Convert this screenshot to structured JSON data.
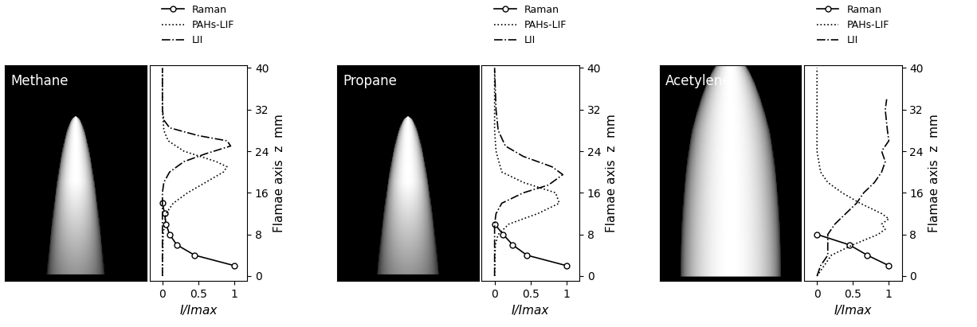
{
  "chart_data": [
    {
      "type": "line",
      "title": "Methane",
      "xlabel": "I/Imax",
      "ylabel": "Flamae axis  z  mm",
      "xlim": [
        -0.18,
        1.18
      ],
      "xticks": [
        0,
        0.5,
        1
      ],
      "ylim": [
        -1,
        40.5
      ],
      "yticks": [
        0,
        8,
        16,
        24,
        32,
        40
      ],
      "legend": "upper center",
      "series": [
        {
          "name": "Raman",
          "color": "#000000",
          "marker": "o",
          "line_style": "solid",
          "x": [
            1.0,
            0.45,
            0.2,
            0.1,
            0.05,
            0.03,
            0.0
          ],
          "y": [
            2,
            4,
            6,
            8,
            10,
            12,
            14
          ]
        },
        {
          "name": "PAHs-LIF",
          "color": "#000000",
          "marker": "none",
          "line_style": "dotted",
          "x": [
            0,
            0.01,
            0.05,
            0.15,
            0.35,
            0.6,
            0.85,
            0.9,
            0.75,
            0.3,
            0.08,
            0.02,
            0,
            0
          ],
          "y": [
            0,
            8,
            12,
            14,
            16,
            18,
            20,
            21,
            22,
            24,
            26,
            28,
            32,
            40
          ]
        },
        {
          "name": "LII",
          "color": "#000000",
          "marker": "none",
          "line_style": "dashdot",
          "x": [
            0,
            0,
            0.02,
            0.1,
            0.3,
            0.6,
            0.95,
            0.9,
            0.5,
            0.1,
            0.02,
            0,
            0
          ],
          "y": [
            0,
            16,
            18,
            20,
            22,
            23.5,
            25,
            26,
            27,
            28.5,
            30,
            32,
            40
          ]
        }
      ]
    },
    {
      "type": "line",
      "title": "Propane",
      "xlabel": "I/Imax",
      "ylabel": "Flamae axis  z  mm",
      "xlim": [
        -0.18,
        1.18
      ],
      "xticks": [
        0,
        0.5,
        1
      ],
      "ylim": [
        -1,
        40.5
      ],
      "yticks": [
        0,
        8,
        16,
        24,
        32,
        40
      ],
      "legend": "upper center",
      "series": [
        {
          "name": "Raman",
          "color": "#000000",
          "marker": "o",
          "line_style": "solid",
          "x": [
            1.0,
            0.45,
            0.25,
            0.12,
            0.0
          ],
          "y": [
            2,
            4,
            6,
            8,
            10
          ]
        },
        {
          "name": "PAHs-LIF",
          "color": "#000000",
          "marker": "none",
          "line_style": "dotted",
          "x": [
            0,
            0.01,
            0.05,
            0.2,
            0.6,
            0.9,
            0.85,
            0.4,
            0.1,
            0.02,
            0,
            0
          ],
          "y": [
            0,
            6,
            8,
            10,
            12,
            14,
            16,
            18,
            20,
            24,
            28,
            40
          ]
        },
        {
          "name": "LII",
          "color": "#000000",
          "marker": "none",
          "line_style": "dashdot",
          "x": [
            0,
            0,
            0.02,
            0.1,
            0.4,
            0.75,
            0.95,
            0.8,
            0.4,
            0.15,
            0.05,
            0.02,
            0
          ],
          "y": [
            0,
            10,
            12,
            14,
            16,
            17.5,
            19.5,
            21,
            23,
            25,
            28,
            32,
            40
          ]
        }
      ]
    },
    {
      "type": "line",
      "title": "Acetylene",
      "xlabel": "I/Imax",
      "ylabel": "Flamae axis  z  mm",
      "xlim": [
        -0.18,
        1.18
      ],
      "xticks": [
        0,
        0.5,
        1
      ],
      "ylim": [
        -1,
        40.5
      ],
      "yticks": [
        0,
        8,
        16,
        24,
        32,
        40
      ],
      "legend": "upper center",
      "series": [
        {
          "name": "Raman",
          "color": "#000000",
          "marker": "o",
          "line_style": "solid",
          "x": [
            1.0,
            0.7,
            0.45,
            0.0
          ],
          "y": [
            2,
            4,
            6,
            8
          ]
        },
        {
          "name": "PAHs-LIF",
          "color": "#000000",
          "marker": "none",
          "line_style": "dotted",
          "x": [
            0,
            0.1,
            0.2,
            0.5,
            0.85,
            0.95,
            0.9,
            1.0,
            0.9,
            0.6,
            0.35,
            0.15,
            0.05,
            0,
            0
          ],
          "y": [
            0,
            2,
            4,
            6,
            8,
            9,
            10,
            11,
            12,
            14,
            16,
            18,
            20,
            24,
            40
          ]
        },
        {
          "name": "LII",
          "color": "#000000",
          "marker": "none",
          "line_style": "dashdot",
          "x": [
            0,
            0.05,
            0.15,
            0.15,
            0.25,
            0.4,
            0.55,
            0.65,
            0.8,
            0.9,
            0.95,
            0.9,
            1.0,
            0.98,
            0.95,
            0.97
          ],
          "y": [
            0,
            2,
            4,
            8,
            10,
            12,
            14,
            16,
            18,
            20,
            22,
            24,
            26,
            28,
            32,
            34
          ]
        }
      ]
    }
  ]
}
